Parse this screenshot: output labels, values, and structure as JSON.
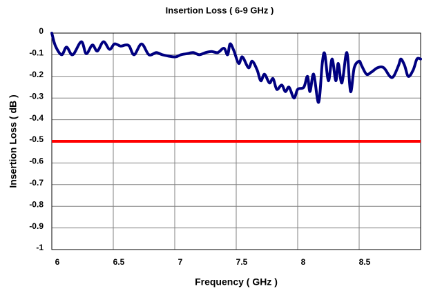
{
  "chart_data": {
    "type": "line",
    "title": "Insertion Loss ( 6-9 GHz )",
    "x_label": "Frequency ( GHz )",
    "y_label": "Insertion Loss ( dB )",
    "series": [
      {
        "color": "#000080",
        "x": [
          6.0,
          6.03,
          6.08,
          6.12,
          6.17,
          6.24,
          6.28,
          6.33,
          6.37,
          6.42,
          6.47,
          6.51,
          6.56,
          6.6,
          6.63,
          6.67,
          6.73,
          6.79,
          6.85,
          6.9,
          7.0,
          7.05,
          7.1,
          7.15,
          7.2,
          7.25,
          7.3,
          7.35,
          7.4,
          7.43,
          7.45,
          7.48,
          7.52,
          7.55,
          7.6,
          7.63,
          7.67,
          7.7,
          7.73,
          7.77,
          7.8,
          7.83,
          7.87,
          7.9,
          7.93,
          7.97,
          8.0,
          8.05,
          8.08,
          8.1,
          8.13,
          8.17,
          8.2,
          8.22,
          8.25,
          8.28,
          8.31,
          8.33,
          8.36,
          8.4,
          8.43,
          8.46,
          8.5,
          8.52,
          8.56,
          8.6,
          8.65,
          8.7,
          8.75,
          8.78,
          8.82,
          8.84,
          8.87,
          8.9,
          8.94,
          8.97,
          9.0
        ],
        "values": [
          0,
          -0.06,
          -0.1,
          -0.065,
          -0.1,
          -0.04,
          -0.095,
          -0.055,
          -0.083,
          -0.04,
          -0.075,
          -0.05,
          -0.06,
          -0.055,
          -0.06,
          -0.1,
          -0.05,
          -0.1,
          -0.09,
          -0.1,
          -0.11,
          -0.1,
          -0.095,
          -0.09,
          -0.1,
          -0.09,
          -0.085,
          -0.09,
          -0.07,
          -0.1,
          -0.05,
          -0.08,
          -0.14,
          -0.11,
          -0.16,
          -0.13,
          -0.17,
          -0.22,
          -0.19,
          -0.23,
          -0.21,
          -0.26,
          -0.24,
          -0.27,
          -0.25,
          -0.3,
          -0.26,
          -0.25,
          -0.2,
          -0.27,
          -0.19,
          -0.32,
          -0.14,
          -0.095,
          -0.22,
          -0.12,
          -0.22,
          -0.14,
          -0.23,
          -0.09,
          -0.27,
          -0.16,
          -0.13,
          -0.15,
          -0.19,
          -0.18,
          -0.16,
          -0.16,
          -0.2,
          -0.2,
          -0.15,
          -0.12,
          -0.15,
          -0.2,
          -0.17,
          -0.12,
          -0.12
        ]
      }
    ],
    "threshold": {
      "value": -0.5,
      "color": "#ff0000"
    },
    "xlim": [
      6,
      9
    ],
    "xticks": [
      6,
      6.5,
      7,
      7.5,
      8,
      8.5,
      9
    ],
    "ylim": [
      -1,
      0
    ],
    "yticks": [
      0,
      -0.1,
      -0.2,
      -0.3,
      -0.4,
      -0.5,
      -0.6,
      -0.7,
      -0.8,
      -0.9,
      -1
    ],
    "grid": true
  }
}
